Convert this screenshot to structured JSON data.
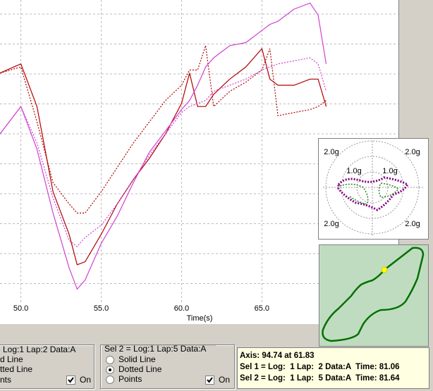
{
  "chart_data": {
    "type": "line",
    "x_label": "Time(s)",
    "x": [
      48.7,
      50,
      51,
      52,
      53,
      53.5,
      54,
      55,
      56,
      57,
      58,
      59,
      60,
      60.5,
      61,
      61.5,
      62,
      63,
      64,
      65,
      65.5,
      66,
      67,
      68,
      68.5,
      69
    ],
    "series": [
      {
        "color": "#b00000",
        "dashed": false,
        "values": [
          76,
          79,
          65,
          37,
          23,
          13,
          14,
          23,
          33,
          41,
          48,
          56,
          66,
          76,
          65,
          65,
          69,
          74,
          78,
          84,
          74,
          72,
          72,
          74,
          74,
          65
        ]
      },
      {
        "color": "#b00000",
        "dashed": true,
        "values": [
          76,
          78,
          60,
          40,
          33,
          30,
          30,
          37,
          45,
          53,
          60,
          67,
          72,
          77,
          77,
          85,
          65,
          70,
          73,
          77,
          84,
          62,
          63,
          64,
          65,
          67
        ]
      },
      {
        "color": "#d040d0",
        "dashed": false,
        "values": [
          56,
          65,
          51,
          30,
          12,
          5,
          8,
          20,
          29,
          40,
          50,
          57,
          64,
          67,
          72,
          78,
          81,
          85,
          86,
          90,
          92,
          93,
          97,
          99,
          95,
          79
        ]
      },
      {
        "color": "#d040d0",
        "dashed": true,
        "values": [
          56,
          65,
          53,
          35,
          21,
          19,
          22,
          26,
          33,
          41,
          49,
          56,
          63,
          65,
          66,
          67,
          70,
          72,
          74,
          77,
          78,
          79,
          80,
          81,
          79,
          70
        ]
      }
    ],
    "xlim": [
      48.7,
      73.5
    ],
    "ylim": [
      0,
      100
    ],
    "xticks": [
      {
        "value": 50,
        "label": "50.0"
      },
      {
        "value": 55,
        "label": "55.0"
      },
      {
        "value": 60,
        "label": "60.0"
      },
      {
        "value": 65,
        "label": "65.0"
      }
    ],
    "grid": true
  },
  "gg_plot": {
    "labels": [
      "2.0g",
      "2.0g",
      "1.0g",
      "1.0g",
      "2.0g",
      "2.0g"
    ]
  },
  "selection_1": {
    "title": "Log:1 Lap:2 Data:A",
    "options": [
      "d Line",
      "tted Line",
      "nts"
    ],
    "checkbox": "On"
  },
  "selection_2": {
    "title": "Sel 2 = Log:1 Lap:5 Data:A",
    "options": [
      "Solid Line",
      "Dotted Line",
      "Points"
    ],
    "selected": 1,
    "checkbox": "On"
  },
  "info": {
    "lines": [
      "Axis: 94.74 at 61.83",
      "Sel 1 = Log:  1 Lap:  2 Data:A  Time: 81.06",
      "Sel 2 = Log:  1 Lap:  5 Data:A  Time: 81.64"
    ]
  }
}
